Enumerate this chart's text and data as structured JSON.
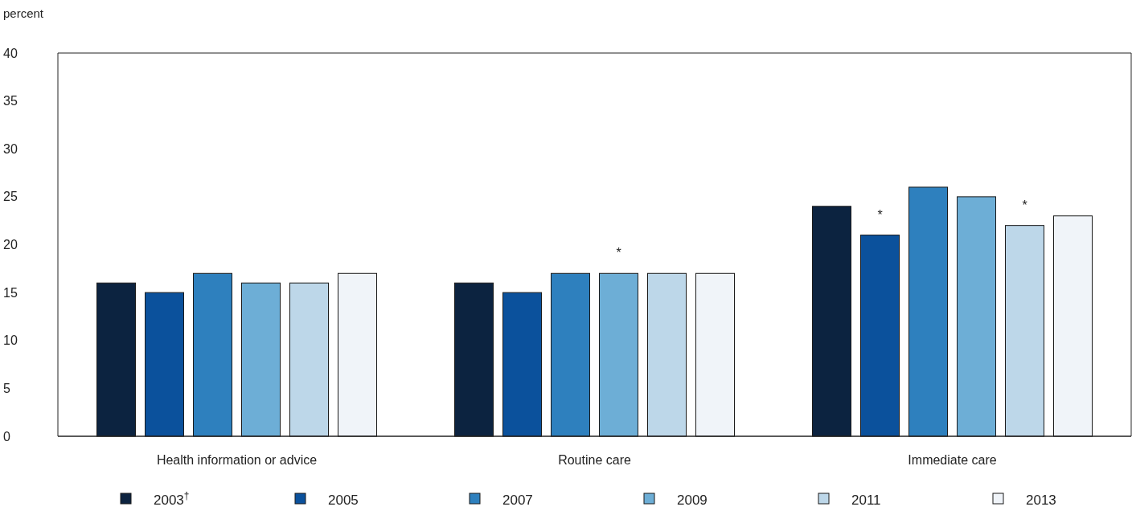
{
  "chart_data": {
    "type": "bar",
    "ylabel": "percent",
    "categories": [
      "Health information or advice",
      "Routine care",
      "Immediate care"
    ],
    "series": [
      {
        "name": "2003$^{†}$",
        "color": "#0c2340",
        "values": [
          16,
          16,
          24
        ]
      },
      {
        "name": "2005",
        "color": "#0b519c",
        "values": [
          15,
          15,
          21
        ],
        "value_labels": [
          null,
          null,
          "*"
        ]
      },
      {
        "name": "2007",
        "color": "#2e80be",
        "values": [
          17,
          17,
          26
        ]
      },
      {
        "name": "2009",
        "color": "#6daed6",
        "values": [
          16,
          17,
          25
        ],
        "value_labels": [
          null,
          "*",
          null
        ]
      },
      {
        "name": "2011",
        "color": "#bdd7e9",
        "values": [
          16,
          17,
          22
        ],
        "value_labels": [
          null,
          null,
          "*"
        ]
      },
      {
        "name": "2013",
        "color": "#f0f4f9",
        "values": [
          17,
          17,
          23
        ]
      }
    ],
    "ylim": [
      0,
      40
    ],
    "yticks": [
      0,
      5,
      10,
      15,
      20,
      25,
      30,
      35,
      40
    ],
    "grid": false,
    "legend": "bottom"
  }
}
